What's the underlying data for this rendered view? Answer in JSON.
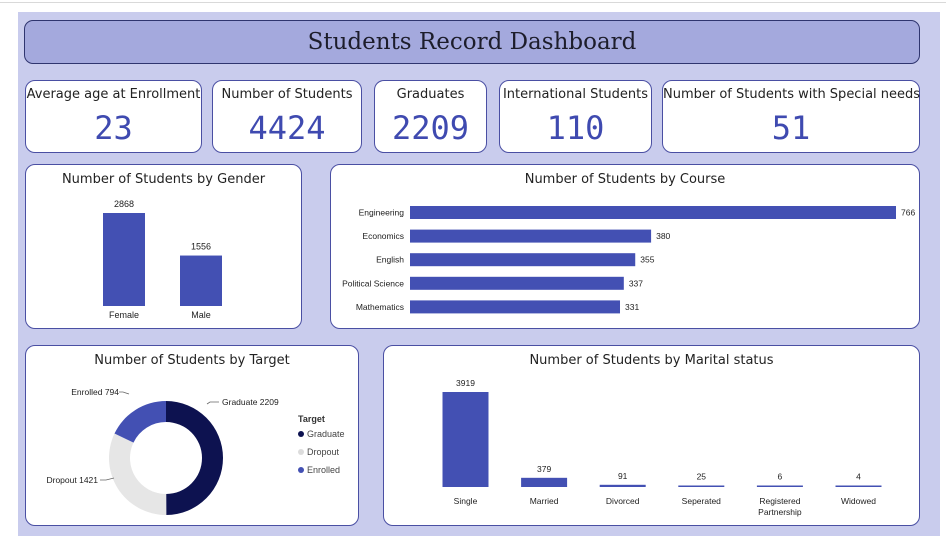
{
  "title": "Students Record Dashboard",
  "kpis": [
    {
      "label": "Average age at Enrollment",
      "value": "23"
    },
    {
      "label": "Number of Students",
      "value": "4424"
    },
    {
      "label": "Graduates",
      "value": "2209"
    },
    {
      "label": "International Students",
      "value": "110"
    },
    {
      "label": "Number of Students with Special needs",
      "value": "51"
    }
  ],
  "colors": {
    "bar": "#4350b3",
    "graduate": "#0d1250",
    "dropout": "#e6e6e6",
    "enrolled": "#4350b3",
    "panel_bg": "#c9cced"
  },
  "chart_data": [
    {
      "type": "bar",
      "title": "Number of Students by Gender",
      "categories": [
        "Female",
        "Male"
      ],
      "values": [
        2868,
        1556
      ]
    },
    {
      "type": "bar",
      "orientation": "horizontal",
      "title": "Number of Students by Course",
      "categories": [
        "Engineering",
        "Economics",
        "English",
        "Political Science",
        "Mathematics"
      ],
      "values": [
        766,
        380,
        355,
        337,
        331
      ]
    },
    {
      "type": "pie",
      "donut": true,
      "title": "Number of Students by Target",
      "legend_title": "Target",
      "legend_position": "right",
      "categories": [
        "Graduate",
        "Dropout",
        "Enrolled"
      ],
      "values": [
        2209,
        1421,
        794
      ],
      "labels": [
        "Graduate 2209",
        "Dropout 1421",
        "Enrolled 794"
      ]
    },
    {
      "type": "bar",
      "title": "Number of Students by Marital status",
      "categories": [
        "Single",
        "Married",
        "Divorced",
        "Seperated",
        "Registered Partnership",
        "Widowed"
      ],
      "values": [
        3919,
        379,
        91,
        25,
        6,
        4
      ]
    }
  ]
}
